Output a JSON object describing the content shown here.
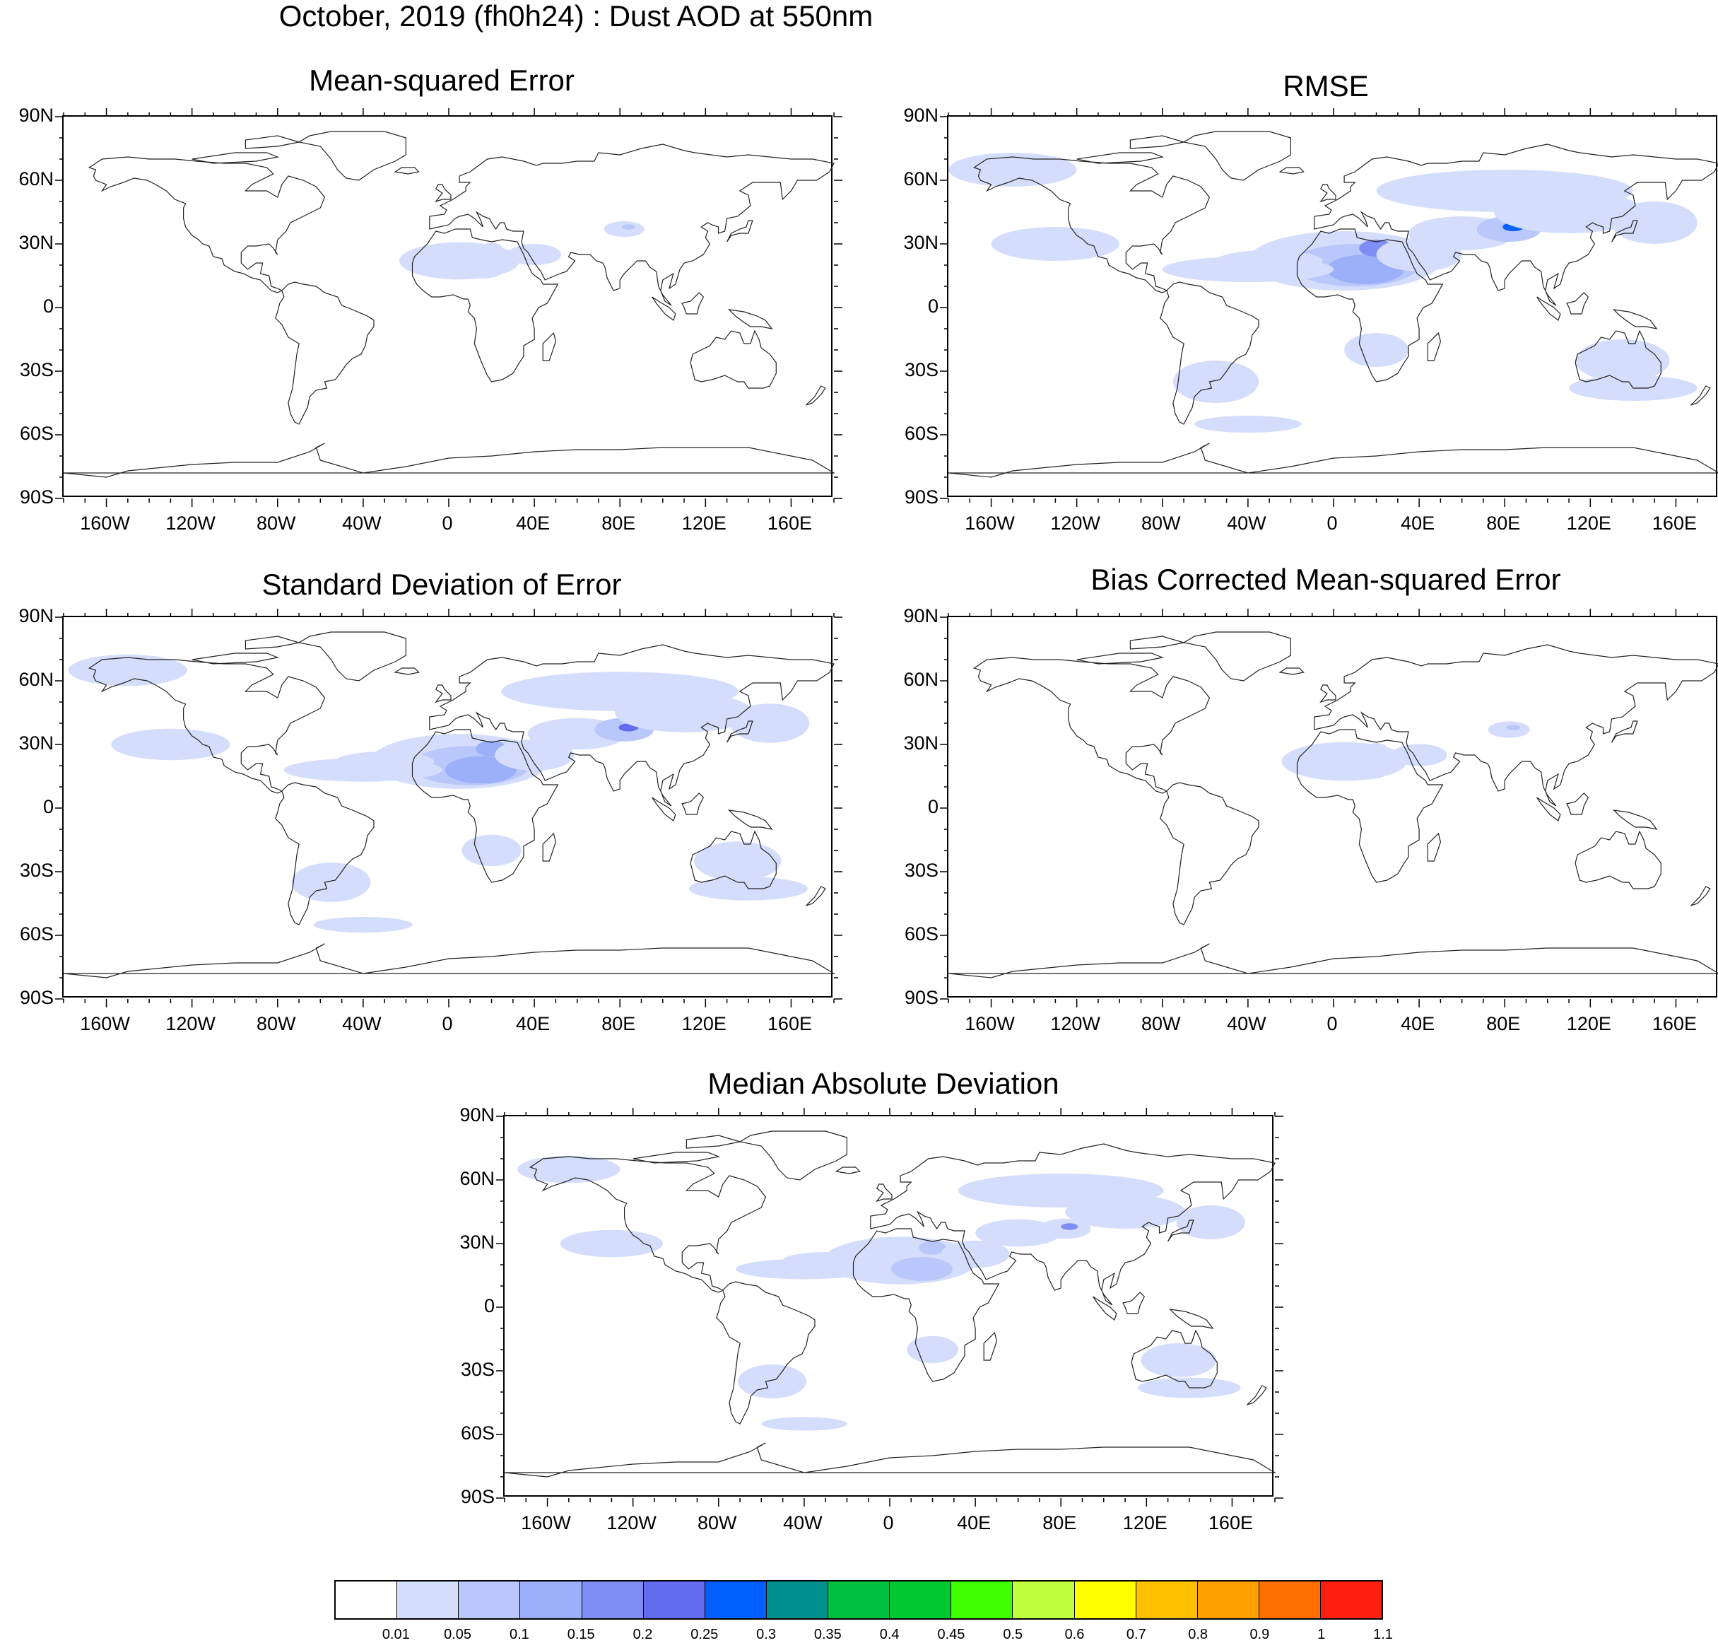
{
  "main_title": "October, 2019 (fh0h24) : Dust AOD at 550nm",
  "lat_labels": [
    "90N",
    "60N",
    "30N",
    "0",
    "30S",
    "60S",
    "90S"
  ],
  "lon_labels": [
    "160W",
    "120W",
    "80W",
    "40W",
    "0",
    "40E",
    "80E",
    "120E",
    "160E"
  ],
  "panels": [
    {
      "id": "mse",
      "title": "Mean-squared Error",
      "intensity": 0.25
    },
    {
      "id": "rmse",
      "title": "RMSE",
      "intensity": 1.0
    },
    {
      "id": "std",
      "title": "Standard Deviation of Error",
      "intensity": 0.85
    },
    {
      "id": "bcmse",
      "title": "Bias Corrected Mean-squared Error",
      "intensity": 0.3
    },
    {
      "id": "mad",
      "title": "Median Absolute Deviation",
      "intensity": 0.6
    }
  ],
  "colorbar": {
    "labels": [
      "0.01",
      "0.05",
      "0.1",
      "0.15",
      "0.2",
      "0.25",
      "0.3",
      "0.35",
      "0.4",
      "0.45",
      "0.5",
      "0.6",
      "0.7",
      "0.8",
      "0.9",
      "1",
      "1.1"
    ],
    "colors": [
      "#ffffff",
      "#d4ddfb",
      "#b9c7fa",
      "#9bb0f9",
      "#7f8ef5",
      "#636cee",
      "#0060ff",
      "#009090",
      "#00c040",
      "#00c830",
      "#40ff00",
      "#c0ff40",
      "#ffff00",
      "#ffc000",
      "#ffa000",
      "#ff7000",
      "#ff2010"
    ]
  }
}
